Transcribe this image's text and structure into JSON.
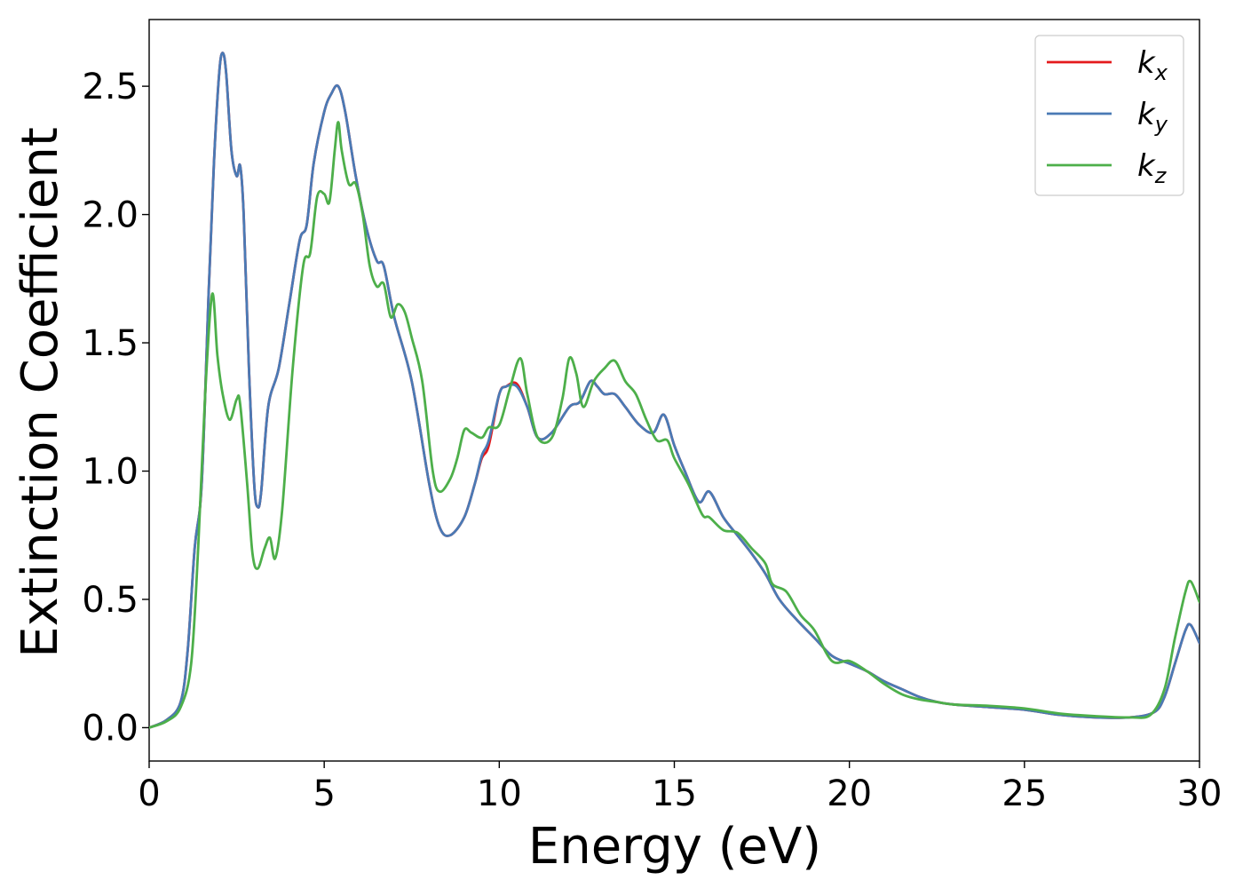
{
  "chart_data": {
    "type": "line",
    "xlabel": "Energy (eV)",
    "ylabel": "Extinction Coefficient",
    "xlim": [
      0,
      30
    ],
    "ylim": [
      -0.13,
      2.76
    ],
    "x_ticks": [
      0,
      5,
      10,
      15,
      20,
      25,
      30
    ],
    "y_ticks": [
      0.0,
      0.5,
      1.0,
      1.5,
      2.0,
      2.5
    ],
    "x_tick_labels": [
      "0",
      "5",
      "10",
      "15",
      "20",
      "25",
      "30"
    ],
    "y_tick_labels": [
      "0.0",
      "0.5",
      "1.0",
      "1.5",
      "2.0",
      "2.5"
    ],
    "grid": false,
    "legend_position": "top-right",
    "series": [
      {
        "name": "k_x",
        "display_base": "k",
        "display_sub": "x",
        "color": "#e41a1c",
        "points": [
          [
            0,
            0.0
          ],
          [
            0.5,
            0.03
          ],
          [
            0.9,
            0.1
          ],
          [
            1.1,
            0.3
          ],
          [
            1.3,
            0.7
          ],
          [
            1.5,
            0.95
          ],
          [
            1.7,
            1.7
          ],
          [
            1.85,
            2.2
          ],
          [
            2.0,
            2.55
          ],
          [
            2.1,
            2.63
          ],
          [
            2.2,
            2.55
          ],
          [
            2.35,
            2.25
          ],
          [
            2.5,
            2.15
          ],
          [
            2.6,
            2.19
          ],
          [
            2.7,
            2.0
          ],
          [
            2.85,
            1.4
          ],
          [
            3.0,
            0.95
          ],
          [
            3.1,
            0.86
          ],
          [
            3.2,
            0.92
          ],
          [
            3.4,
            1.25
          ],
          [
            3.7,
            1.4
          ],
          [
            4.0,
            1.65
          ],
          [
            4.3,
            1.9
          ],
          [
            4.5,
            1.96
          ],
          [
            4.7,
            2.2
          ],
          [
            5.0,
            2.4
          ],
          [
            5.2,
            2.47
          ],
          [
            5.4,
            2.5
          ],
          [
            5.6,
            2.4
          ],
          [
            5.9,
            2.15
          ],
          [
            6.2,
            1.95
          ],
          [
            6.5,
            1.82
          ],
          [
            6.7,
            1.8
          ],
          [
            7.0,
            1.6
          ],
          [
            7.5,
            1.35
          ],
          [
            8.0,
            0.95
          ],
          [
            8.3,
            0.78
          ],
          [
            8.6,
            0.75
          ],
          [
            9.0,
            0.82
          ],
          [
            9.3,
            0.95
          ],
          [
            9.5,
            1.05
          ],
          [
            9.7,
            1.1
          ],
          [
            10.0,
            1.3
          ],
          [
            10.2,
            1.33
          ],
          [
            10.5,
            1.34
          ],
          [
            10.8,
            1.25
          ],
          [
            11.1,
            1.13
          ],
          [
            11.5,
            1.15
          ],
          [
            12.0,
            1.25
          ],
          [
            12.3,
            1.27
          ],
          [
            12.6,
            1.35
          ],
          [
            12.8,
            1.33
          ],
          [
            13.0,
            1.3
          ],
          [
            13.3,
            1.3
          ],
          [
            13.6,
            1.25
          ],
          [
            14.0,
            1.18
          ],
          [
            14.4,
            1.15
          ],
          [
            14.7,
            1.22
          ],
          [
            15.0,
            1.1
          ],
          [
            15.3,
            1.0
          ],
          [
            15.7,
            0.88
          ],
          [
            16.0,
            0.92
          ],
          [
            16.4,
            0.82
          ],
          [
            16.8,
            0.75
          ],
          [
            17.2,
            0.68
          ],
          [
            17.6,
            0.6
          ],
          [
            18.0,
            0.5
          ],
          [
            18.5,
            0.42
          ],
          [
            19.0,
            0.35
          ],
          [
            19.5,
            0.28
          ],
          [
            20.0,
            0.25
          ],
          [
            20.5,
            0.22
          ],
          [
            21.0,
            0.18
          ],
          [
            21.5,
            0.15
          ],
          [
            22.0,
            0.12
          ],
          [
            22.5,
            0.1
          ],
          [
            23.0,
            0.09
          ],
          [
            24.0,
            0.08
          ],
          [
            25.0,
            0.07
          ],
          [
            26.0,
            0.05
          ],
          [
            27.0,
            0.04
          ],
          [
            28.0,
            0.04
          ],
          [
            28.7,
            0.06
          ],
          [
            29.0,
            0.12
          ],
          [
            29.3,
            0.25
          ],
          [
            29.6,
            0.38
          ],
          [
            29.75,
            0.4
          ],
          [
            30.0,
            0.33
          ]
        ]
      },
      {
        "name": "k_y",
        "display_base": "k",
        "display_sub": "y",
        "color": "#4a7ab5",
        "points": [
          [
            0,
            0.0
          ],
          [
            0.5,
            0.03
          ],
          [
            0.9,
            0.1
          ],
          [
            1.1,
            0.3
          ],
          [
            1.3,
            0.7
          ],
          [
            1.5,
            0.95
          ],
          [
            1.7,
            1.7
          ],
          [
            1.85,
            2.2
          ],
          [
            2.0,
            2.55
          ],
          [
            2.1,
            2.63
          ],
          [
            2.2,
            2.55
          ],
          [
            2.35,
            2.25
          ],
          [
            2.5,
            2.15
          ],
          [
            2.6,
            2.19
          ],
          [
            2.7,
            2.0
          ],
          [
            2.85,
            1.4
          ],
          [
            3.0,
            0.95
          ],
          [
            3.1,
            0.86
          ],
          [
            3.2,
            0.92
          ],
          [
            3.4,
            1.25
          ],
          [
            3.7,
            1.4
          ],
          [
            4.0,
            1.65
          ],
          [
            4.3,
            1.9
          ],
          [
            4.5,
            1.96
          ],
          [
            4.7,
            2.2
          ],
          [
            5.0,
            2.4
          ],
          [
            5.2,
            2.47
          ],
          [
            5.4,
            2.5
          ],
          [
            5.6,
            2.4
          ],
          [
            5.9,
            2.15
          ],
          [
            6.2,
            1.95
          ],
          [
            6.5,
            1.82
          ],
          [
            6.7,
            1.8
          ],
          [
            7.0,
            1.6
          ],
          [
            7.5,
            1.35
          ],
          [
            8.0,
            0.95
          ],
          [
            8.3,
            0.78
          ],
          [
            8.6,
            0.75
          ],
          [
            9.0,
            0.82
          ],
          [
            9.3,
            0.95
          ],
          [
            9.5,
            1.06
          ],
          [
            9.7,
            1.12
          ],
          [
            10.0,
            1.3
          ],
          [
            10.2,
            1.33
          ],
          [
            10.5,
            1.33
          ],
          [
            10.8,
            1.25
          ],
          [
            11.1,
            1.13
          ],
          [
            11.5,
            1.15
          ],
          [
            12.0,
            1.25
          ],
          [
            12.3,
            1.27
          ],
          [
            12.6,
            1.35
          ],
          [
            12.8,
            1.33
          ],
          [
            13.0,
            1.3
          ],
          [
            13.3,
            1.3
          ],
          [
            13.6,
            1.25
          ],
          [
            14.0,
            1.18
          ],
          [
            14.4,
            1.15
          ],
          [
            14.7,
            1.22
          ],
          [
            15.0,
            1.1
          ],
          [
            15.3,
            1.0
          ],
          [
            15.7,
            0.88
          ],
          [
            16.0,
            0.92
          ],
          [
            16.4,
            0.82
          ],
          [
            16.8,
            0.75
          ],
          [
            17.2,
            0.68
          ],
          [
            17.6,
            0.6
          ],
          [
            18.0,
            0.5
          ],
          [
            18.5,
            0.42
          ],
          [
            19.0,
            0.35
          ],
          [
            19.5,
            0.28
          ],
          [
            20.0,
            0.25
          ],
          [
            20.5,
            0.22
          ],
          [
            21.0,
            0.18
          ],
          [
            21.5,
            0.15
          ],
          [
            22.0,
            0.12
          ],
          [
            22.5,
            0.1
          ],
          [
            23.0,
            0.09
          ],
          [
            24.0,
            0.08
          ],
          [
            25.0,
            0.07
          ],
          [
            26.0,
            0.05
          ],
          [
            27.0,
            0.04
          ],
          [
            28.0,
            0.04
          ],
          [
            28.7,
            0.06
          ],
          [
            29.0,
            0.12
          ],
          [
            29.3,
            0.25
          ],
          [
            29.6,
            0.38
          ],
          [
            29.75,
            0.4
          ],
          [
            30.0,
            0.33
          ]
        ]
      },
      {
        "name": "k_z",
        "display_base": "k",
        "display_sub": "z",
        "color": "#4daf4a",
        "points": [
          [
            0,
            0.0
          ],
          [
            0.5,
            0.025
          ],
          [
            0.9,
            0.08
          ],
          [
            1.2,
            0.25
          ],
          [
            1.4,
            0.7
          ],
          [
            1.6,
            1.3
          ],
          [
            1.8,
            1.69
          ],
          [
            1.95,
            1.45
          ],
          [
            2.1,
            1.3
          ],
          [
            2.3,
            1.2
          ],
          [
            2.5,
            1.28
          ],
          [
            2.6,
            1.26
          ],
          [
            2.8,
            0.95
          ],
          [
            2.95,
            0.68
          ],
          [
            3.1,
            0.62
          ],
          [
            3.3,
            0.7
          ],
          [
            3.45,
            0.74
          ],
          [
            3.6,
            0.66
          ],
          [
            3.8,
            0.85
          ],
          [
            4.1,
            1.4
          ],
          [
            4.4,
            1.8
          ],
          [
            4.6,
            1.85
          ],
          [
            4.8,
            2.07
          ],
          [
            5.0,
            2.08
          ],
          [
            5.15,
            2.05
          ],
          [
            5.3,
            2.25
          ],
          [
            5.4,
            2.36
          ],
          [
            5.5,
            2.25
          ],
          [
            5.7,
            2.12
          ],
          [
            5.9,
            2.12
          ],
          [
            6.1,
            2.0
          ],
          [
            6.3,
            1.8
          ],
          [
            6.5,
            1.72
          ],
          [
            6.7,
            1.73
          ],
          [
            6.9,
            1.6
          ],
          [
            7.1,
            1.65
          ],
          [
            7.3,
            1.62
          ],
          [
            7.5,
            1.52
          ],
          [
            7.8,
            1.35
          ],
          [
            8.1,
            1.0
          ],
          [
            8.3,
            0.92
          ],
          [
            8.6,
            0.97
          ],
          [
            8.8,
            1.05
          ],
          [
            9.0,
            1.16
          ],
          [
            9.2,
            1.15
          ],
          [
            9.5,
            1.13
          ],
          [
            9.7,
            1.17
          ],
          [
            10.0,
            1.18
          ],
          [
            10.3,
            1.32
          ],
          [
            10.6,
            1.44
          ],
          [
            10.8,
            1.3
          ],
          [
            11.1,
            1.13
          ],
          [
            11.5,
            1.13
          ],
          [
            11.8,
            1.28
          ],
          [
            12.0,
            1.44
          ],
          [
            12.2,
            1.38
          ],
          [
            12.4,
            1.25
          ],
          [
            12.7,
            1.35
          ],
          [
            13.0,
            1.4
          ],
          [
            13.3,
            1.43
          ],
          [
            13.6,
            1.35
          ],
          [
            13.9,
            1.3
          ],
          [
            14.2,
            1.2
          ],
          [
            14.5,
            1.12
          ],
          [
            14.8,
            1.12
          ],
          [
            15.0,
            1.05
          ],
          [
            15.4,
            0.95
          ],
          [
            15.8,
            0.83
          ],
          [
            16.0,
            0.82
          ],
          [
            16.4,
            0.77
          ],
          [
            16.8,
            0.76
          ],
          [
            17.2,
            0.7
          ],
          [
            17.6,
            0.64
          ],
          [
            17.8,
            0.56
          ],
          [
            18.2,
            0.53
          ],
          [
            18.6,
            0.44
          ],
          [
            19.0,
            0.38
          ],
          [
            19.5,
            0.26
          ],
          [
            20.0,
            0.26
          ],
          [
            20.5,
            0.22
          ],
          [
            21.0,
            0.17
          ],
          [
            21.5,
            0.13
          ],
          [
            22.0,
            0.11
          ],
          [
            22.5,
            0.1
          ],
          [
            23.0,
            0.09
          ],
          [
            24.0,
            0.085
          ],
          [
            25.0,
            0.075
          ],
          [
            26.0,
            0.055
          ],
          [
            27.0,
            0.045
          ],
          [
            28.0,
            0.04
          ],
          [
            28.6,
            0.05
          ],
          [
            29.0,
            0.15
          ],
          [
            29.3,
            0.35
          ],
          [
            29.6,
            0.53
          ],
          [
            29.75,
            0.57
          ],
          [
            30.0,
            0.49
          ]
        ]
      }
    ]
  }
}
